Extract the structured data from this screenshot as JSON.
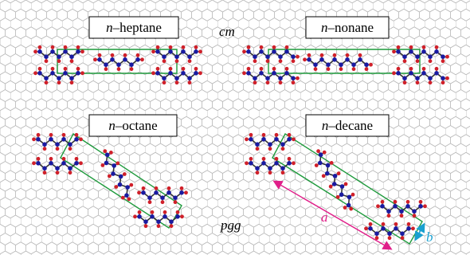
{
  "panels": [
    {
      "label": {
        "prefix": "n",
        "name": "–heptane"
      }
    },
    {
      "label": {
        "prefix": "n",
        "name": "–nonane"
      }
    },
    {
      "label": {
        "prefix": "n",
        "name": "–octane"
      }
    },
    {
      "label": {
        "prefix": "n",
        "name": "–decane"
      }
    }
  ],
  "symmetry": {
    "top": "cm",
    "bottom": "pgg"
  },
  "lattice_vectors": {
    "a": "a",
    "b": "b"
  }
}
